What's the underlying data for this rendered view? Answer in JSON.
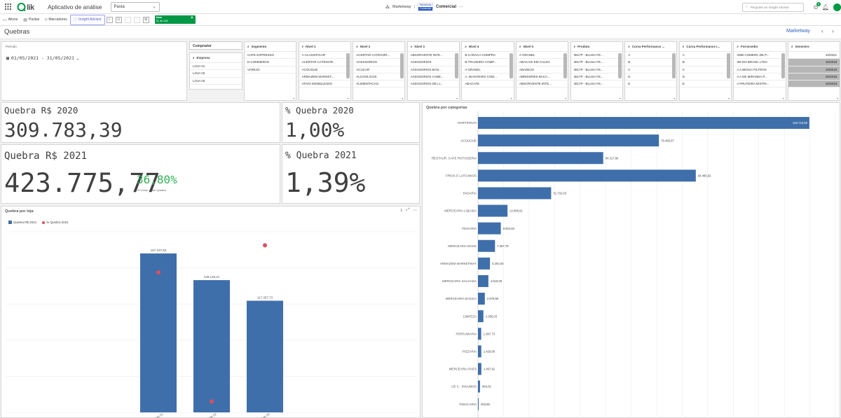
{
  "app": {
    "logo": "Qlik",
    "title": "Aplicativo de análise",
    "view_select": "Pasta",
    "center_label": "Marketway",
    "center_app": "Comercial",
    "mw_top": "Marketway",
    "mw_bottom": "Comercial",
    "insight_search_placeholder": "Pergunte ao Insight Advisor",
    "notif_count": "6"
  },
  "toolbar": {
    "ativos": "Ativos",
    "pastas": "Pastas",
    "marcadores": "Marcadores",
    "insight": "Insight Advisor",
    "selection_field": "Data",
    "selection_value": "01 de 248"
  },
  "sheet": {
    "title": "Quebras",
    "brand": "Marketway"
  },
  "filters": {
    "periodo_label": "Período",
    "periodo_value": "01/05/2021 - 31/05/2021",
    "comprador_label": "Comprador",
    "empresa_label": "Empresa",
    "empresas": [
      "LOJA 01",
      "LOJA 02",
      "LOJA 03"
    ],
    "listboxes": [
      {
        "title": "Segmento",
        "items": [
          "CAFE EXPRESSO",
          "E-COMMERCE",
          "VAREJO"
        ]
      },
      {
        "title": "Nível 1",
        "items": [
          "A CLASSIFICAR",
          "ACERTAR CATEGOR...",
          "ACOUGUE",
          "ARMAZEM MARKET...",
          "ATIVO IMOBILIZADO"
        ]
      },
      {
        "title": "Nível 2",
        "items": [
          "ACERTAR CATEGOR...",
          "ACESSORIOS",
          "ACUCAR",
          "ALCOOLICOS",
          "ALIMENTACAO"
        ]
      },
      {
        "title": "Nível 3",
        "items": [
          "ABSORVENTE INTE...",
          "ACESSORIOS",
          "ACESSORIOS BAN...",
          "ACESSORIOS CABE...",
          "ACESSORIOS DE LI..."
        ]
      },
      {
        "title": "Nível 4",
        "items": [
          "B.CARACA COMPRA",
          "B.TRASEIRO COMP...",
          "A GRANEL",
          "A. DIANTEIRO COM...",
          "ABACATE"
        ]
      },
      {
        "title": "Nível 5",
        "items": [
          "A GRANEL",
          "ABACAXI EM CALDA",
          "ABADEJO",
          "ABRIDORES BACA...",
          "ABSORVENTE INTE..."
        ]
      },
      {
        "title": "Produto",
        "items": [
          "3817P - BLUSA FE...",
          "3817P - BLUSA FE...",
          "3817P - BLUSA FE...",
          "3817P - BLUSA FE...",
          "3817P - BLUSA FE..."
        ]
      },
      {
        "title": "Curva Performance ...",
        "items": [
          "A",
          "B",
          "C",
          "D",
          "E"
        ]
      },
      {
        "title": "Curva Performance I...",
        "items": [
          "A",
          "B",
          "C",
          "D",
          "E"
        ]
      },
      {
        "title": "Fornecedor",
        "items": [
          "2WB COMERC.DE P...",
          "3M DO BRASIL LTDA",
          "A A BESSA FILTROS",
          "A A DE MIRANDA P...",
          "A FRUTEIRA DISTRI..."
        ]
      },
      {
        "title": "Semestre",
        "items": [
          "10/2021",
          "10/2018",
          "10/2018",
          "20/2018",
          "20/2019"
        ]
      }
    ]
  },
  "kpis": {
    "q2020_title": "Quebra R$ 2020",
    "q2020_value": "309.783,39",
    "p2020_title": "% Quebra 2020",
    "p2020_value": "1,00%",
    "q2021_title": "Quebra R$ 2021",
    "q2021_value": "423.775,77",
    "q2021_growth": "36,80%",
    "q2021_growth_caption": "% Cresc. Valor Quebra",
    "p2021_title": "% Quebra 2021",
    "p2021_value": "1,39%"
  },
  "colors": {
    "bar": "#3f6faa",
    "dot": "#d9505e",
    "accent": "#009845",
    "growth": "#31b255"
  },
  "chart_loja": {
    "title": "Quebra por loja",
    "legend_bar": "Quebra R$ 2021",
    "legend_dot": "% Quebra 2021"
  },
  "chart_cat": {
    "title": "Quebra por categorias"
  },
  "chart_data": [
    {
      "type": "bar",
      "title": "Quebra por loja",
      "categories": [
        "LOJA 01",
        "LOJA 02",
        "LOJA 03"
      ],
      "series": [
        {
          "name": "Quebra R$ 2021",
          "values": [
            167197.82,
            139128.21,
            117457.73
          ],
          "labels": [
            "167.197,82",
            "139.128,21",
            "117.457,73"
          ]
        },
        {
          "name": "% Quebra 2021",
          "values": [
            1.55,
            0.12,
            1.85
          ]
        }
      ],
      "ylim": [
        0,
        190000
      ],
      "grid": true,
      "legend": "top-left"
    },
    {
      "type": "bar",
      "orientation": "horizontal",
      "title": "Quebra por categorias",
      "categories": [
        "HORTIFRUTI",
        "ACOUGUE",
        "RESTAUR. CAFE ROTISSERIA",
        "FRIOS E LATICINIOS",
        "PADARIA",
        "MERCEARIA LIQUIDA",
        "PEIXARIA",
        "MERCEARIA DOCE",
        "ARMAZEM MARKETWAY",
        "MERCEARIA SALGADA",
        "MERCEARIA BASICA",
        "LIMPEZA",
        "PERFUMARIA",
        "PIZZARIA",
        "MERCEARIA PAES",
        "UE C - INSUMOS",
        "TABACARIA"
      ],
      "values": [
        143710.08,
        78466.97,
        54317.6,
        94465.92,
        31732.03,
        12809.91,
        9903.83,
        7387.79,
        5203.03,
        4518.09,
        2979.56,
        2356.03,
        1397.73,
        1429.99,
        1467.62,
        894.02,
        303.85
      ],
      "labels": [
        "143.710,08",
        "78.466,97",
        "54.317,60",
        "94.465,92",
        "31.732,03",
        "12.809,91",
        "9.903,83",
        "7.387,79",
        "5.203,03",
        "4.518,09",
        "2.979,56",
        "2.356,03",
        "1.397,73",
        "1.429,99",
        "1.467,62",
        "894,02",
        "303,85"
      ],
      "xlim": [
        0,
        155000
      ],
      "grid": true
    }
  ]
}
